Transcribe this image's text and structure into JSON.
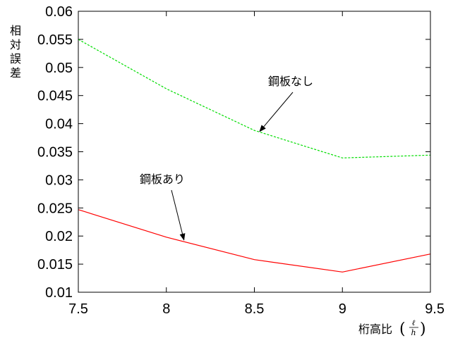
{
  "chart_data": {
    "type": "line",
    "title": "",
    "ylabel": "相対誤差",
    "xlabel": {
      "text": "桁高比",
      "fraction_numerator": "ℓ",
      "fraction_denominator": "h"
    },
    "xlim": [
      7.5,
      9.5
    ],
    "ylim": [
      0.01,
      0.06
    ],
    "x_ticks": [
      "7.5",
      "8",
      "8.5",
      "9",
      "9.5"
    ],
    "y_ticks": [
      "0.01",
      "0.015",
      "0.02",
      "0.025",
      "0.03",
      "0.035",
      "0.04",
      "0.045",
      "0.05",
      "0.055",
      "0.06"
    ],
    "grid": false,
    "legend": "none",
    "series": [
      {
        "name": "鋼板なし",
        "color": "#00dd00",
        "dash": "dashed",
        "x": [
          7.5,
          8.0,
          8.5,
          9.0,
          9.5
        ],
        "y": [
          0.055,
          0.0462,
          0.0388,
          0.0339,
          0.0344
        ]
      },
      {
        "name": "鋼板あり",
        "color": "#ff0000",
        "dash": "solid",
        "x": [
          7.5,
          8.0,
          8.5,
          9.0,
          9.5
        ],
        "y": [
          0.0247,
          0.0198,
          0.0158,
          0.0136,
          0.0168
        ]
      }
    ],
    "annotations": [
      {
        "text": "鋼板なし",
        "series": 0,
        "target_x": 8.53,
        "target_y": 0.0386
      },
      {
        "text": "鋼板あり",
        "series": 1,
        "target_x": 8.1,
        "target_y": 0.0193
      }
    ]
  }
}
